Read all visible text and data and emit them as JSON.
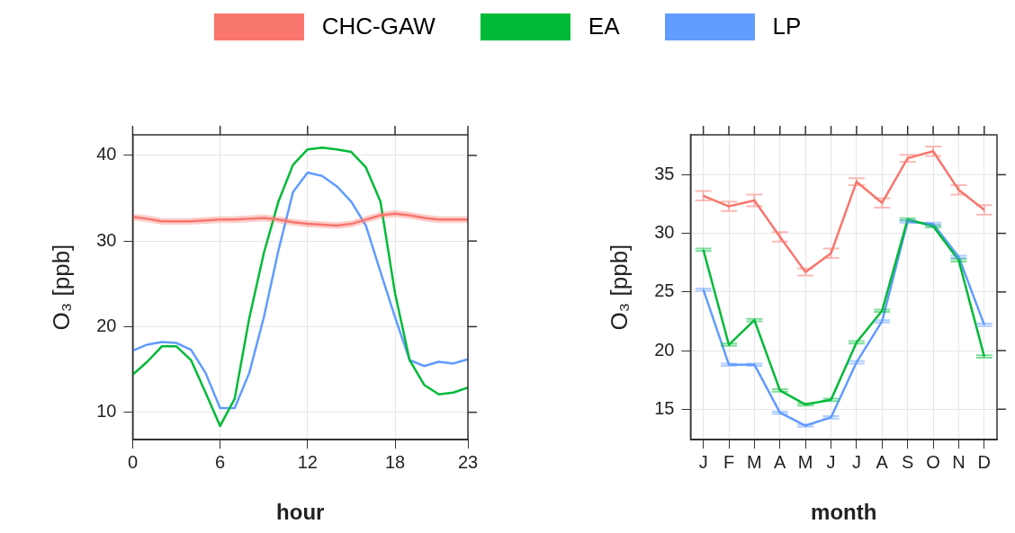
{
  "chart_data": [
    {
      "type": "line",
      "xlabel": "hour",
      "ylabel": "O₃ [ppb]",
      "x": [
        0,
        1,
        2,
        3,
        4,
        5,
        6,
        7,
        8,
        9,
        10,
        11,
        12,
        13,
        14,
        15,
        16,
        17,
        18,
        19,
        20,
        21,
        22,
        23
      ],
      "xlim": [
        0,
        23
      ],
      "xticks": [
        0,
        6,
        12,
        18,
        23
      ],
      "ylim": [
        6.8,
        42.4
      ],
      "yticks": [
        10,
        20,
        30,
        40
      ],
      "grid": true,
      "legend": "top",
      "series": [
        {
          "name": "CHC-GAW",
          "color": "#f8766d",
          "values": [
            32.8,
            32.6,
            32.3,
            32.3,
            32.3,
            32.4,
            32.5,
            32.5,
            32.6,
            32.7,
            32.5,
            32.2,
            32.0,
            31.9,
            31.8,
            32.0,
            32.5,
            33.0,
            33.2,
            33.0,
            32.7,
            32.5,
            32.5,
            32.5
          ],
          "lower": [
            32.4,
            32.2,
            31.9,
            31.9,
            31.9,
            32.0,
            32.1,
            32.1,
            32.2,
            32.3,
            32.1,
            31.8,
            31.6,
            31.5,
            31.4,
            31.6,
            32.1,
            32.6,
            32.8,
            32.6,
            32.3,
            32.1,
            32.1,
            32.1
          ],
          "upper": [
            33.2,
            33.0,
            32.7,
            32.7,
            32.7,
            32.8,
            32.9,
            32.9,
            33.0,
            33.1,
            32.9,
            32.6,
            32.4,
            32.3,
            32.2,
            32.4,
            32.9,
            33.4,
            33.6,
            33.4,
            33.1,
            32.9,
            32.9,
            32.9
          ]
        },
        {
          "name": "EA",
          "color": "#00ba38",
          "values": [
            14.4,
            15.9,
            17.7,
            17.7,
            16.1,
            12.3,
            8.4,
            11.6,
            21.0,
            28.6,
            34.6,
            38.9,
            40.7,
            40.9,
            40.7,
            40.4,
            38.6,
            34.6,
            23.9,
            16.1,
            13.2,
            12.1,
            12.3,
            12.9
          ]
        },
        {
          "name": "LP",
          "color": "#619cff",
          "values": [
            17.2,
            17.9,
            18.2,
            18.1,
            17.3,
            14.6,
            10.5,
            10.5,
            14.6,
            21.1,
            28.9,
            35.7,
            38.0,
            37.6,
            36.4,
            34.6,
            31.8,
            26.4,
            21.1,
            16.1,
            15.4,
            15.9,
            15.7,
            16.2
          ]
        }
      ]
    },
    {
      "type": "line",
      "xlabel": "month",
      "ylabel": "O₃ [ppb]",
      "categories": [
        "J",
        "F",
        "M",
        "A",
        "M",
        "J",
        "J",
        "A",
        "S",
        "O",
        "N",
        "D"
      ],
      "ylim": [
        12.4,
        38.4
      ],
      "yticks": [
        15,
        20,
        25,
        30,
        35
      ],
      "grid": true,
      "series": [
        {
          "color": "#f8766d",
          "values": [
            33.2,
            32.3,
            32.8,
            29.7,
            26.7,
            28.3,
            34.4,
            32.6,
            36.4,
            37.0,
            33.7,
            32.0
          ],
          "errors": [
            0.4,
            0.4,
            0.5,
            0.4,
            0.3,
            0.4,
            0.3,
            0.4,
            0.3,
            0.4,
            0.4,
            0.4
          ]
        },
        {
          "color": "#00ba38",
          "values": [
            28.6,
            20.5,
            22.6,
            16.6,
            15.4,
            15.8,
            20.7,
            23.4,
            31.2,
            30.6,
            27.7,
            19.5
          ],
          "errors": [
            0.1,
            0.1,
            0.1,
            0.1,
            0.1,
            0.1,
            0.1,
            0.1,
            0.1,
            0.1,
            0.1,
            0.1
          ]
        },
        {
          "color": "#619cff",
          "values": [
            25.2,
            18.8,
            18.8,
            14.7,
            13.6,
            14.3,
            19.0,
            22.5,
            31.0,
            30.8,
            28.0,
            22.2
          ],
          "errors": [
            0.1,
            0.1,
            0.1,
            0.1,
            0.1,
            0.1,
            0.1,
            0.1,
            0.1,
            0.1,
            0.1,
            0.1
          ]
        }
      ]
    }
  ]
}
